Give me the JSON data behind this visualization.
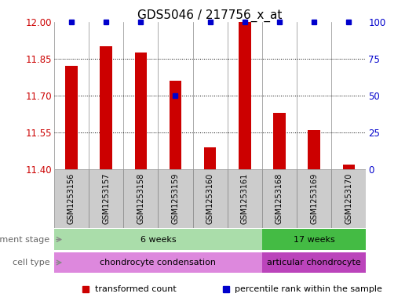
{
  "title": "GDS5046 / 217756_x_at",
  "samples": [
    "GSM1253156",
    "GSM1253157",
    "GSM1253158",
    "GSM1253159",
    "GSM1253160",
    "GSM1253161",
    "GSM1253168",
    "GSM1253169",
    "GSM1253170"
  ],
  "transformed_counts": [
    11.82,
    11.9,
    11.875,
    11.76,
    11.49,
    12.0,
    11.63,
    11.56,
    11.42
  ],
  "percentile_ranks": [
    100,
    100,
    100,
    50,
    100,
    100,
    100,
    100,
    100
  ],
  "ylim_left": [
    11.4,
    12.0
  ],
  "ylim_right": [
    0,
    100
  ],
  "yticks_left": [
    11.4,
    11.55,
    11.7,
    11.85,
    12.0
  ],
  "yticks_right": [
    0,
    25,
    50,
    75,
    100
  ],
  "bar_color": "#cc0000",
  "dot_color": "#0000cc",
  "background_color": "#ffffff",
  "development_stage_groups": [
    {
      "label": "6 weeks",
      "start": 0,
      "end": 5,
      "color": "#aaddaa"
    },
    {
      "label": "17 weeks",
      "start": 6,
      "end": 8,
      "color": "#44bb44"
    }
  ],
  "cell_type_groups": [
    {
      "label": "chondrocyte condensation",
      "start": 0,
      "end": 5,
      "color": "#dd88dd"
    },
    {
      "label": "articular chondrocyte",
      "start": 6,
      "end": 8,
      "color": "#bb44bb"
    }
  ],
  "row_labels": [
    "development stage",
    "cell type"
  ],
  "legend_items": [
    {
      "label": "transformed count",
      "color": "#cc0000"
    },
    {
      "label": "percentile rank within the sample",
      "color": "#0000cc"
    }
  ],
  "bar_width": 0.35,
  "title_fontsize": 11,
  "tick_fontsize": 8.5,
  "annot_fontsize": 8,
  "sample_fontsize": 7
}
